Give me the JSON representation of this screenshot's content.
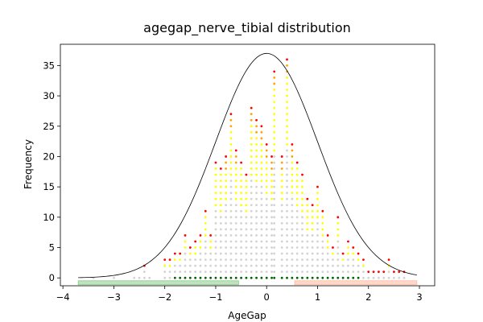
{
  "chart_data": {
    "type": "scatter",
    "title": "agegap_nerve_tibial distribution",
    "xlabel": "AgeGap",
    "ylabel": "Frequency",
    "xlim": [
      -4.05,
      3.3
    ],
    "ylim": [
      -1.3,
      38.5
    ],
    "xticks": [
      -4,
      -3,
      -2,
      -1,
      0,
      1,
      2,
      3
    ],
    "yticks": [
      0,
      5,
      10,
      15,
      20,
      25,
      30,
      35
    ],
    "grid": false,
    "legend": "none",
    "bin_width": 0.1,
    "curve": {
      "name": "normal fit",
      "mean": 0.0,
      "sd": 1.0,
      "peak": 37,
      "x_range": [
        -3.7,
        2.95
      ],
      "color": "#000000"
    },
    "bands": [
      {
        "x": [
          -3.7,
          -0.55
        ],
        "y": -0.8,
        "color": "#2ca02c"
      },
      {
        "x": [
          0.55,
          2.95
        ],
        "y": -0.8,
        "color": "#ff7f50"
      }
    ],
    "colors": {
      "base": "#d3d3d3",
      "mid": "#ffff00",
      "high": "#ffa500",
      "top": "#ff0000",
      "zero": "#006400"
    },
    "stacks": [
      {
        "x": -3.4,
        "count": 0
      },
      {
        "x": -3.0,
        "count": 0
      },
      {
        "x": -2.6,
        "count": 0
      },
      {
        "x": -2.5,
        "count": 0
      },
      {
        "x": -2.4,
        "count": 2
      },
      {
        "x": -2.3,
        "count": 0
      },
      {
        "x": -2.0,
        "count": 3
      },
      {
        "x": -1.9,
        "count": 3
      },
      {
        "x": -1.8,
        "count": 4
      },
      {
        "x": -1.7,
        "count": 4
      },
      {
        "x": -1.6,
        "count": 7
      },
      {
        "x": -1.5,
        "count": 5
      },
      {
        "x": -1.4,
        "count": 6
      },
      {
        "x": -1.3,
        "count": 7
      },
      {
        "x": -1.2,
        "count": 11
      },
      {
        "x": -1.1,
        "count": 7
      },
      {
        "x": -1.0,
        "count": 19
      },
      {
        "x": -0.9,
        "count": 18
      },
      {
        "x": -0.8,
        "count": 20
      },
      {
        "x": -0.7,
        "count": 27
      },
      {
        "x": -0.6,
        "count": 21
      },
      {
        "x": -0.5,
        "count": 19
      },
      {
        "x": -0.4,
        "count": 17
      },
      {
        "x": -0.3,
        "count": 28
      },
      {
        "x": -0.2,
        "count": 26
      },
      {
        "x": -0.1,
        "count": 25
      },
      {
        "x": 0.0,
        "count": 22
      },
      {
        "x": 0.1,
        "count": 20
      },
      {
        "x": 0.15,
        "count": 34
      },
      {
        "x": 0.3,
        "count": 20
      },
      {
        "x": 0.4,
        "count": 36
      },
      {
        "x": 0.5,
        "count": 22
      },
      {
        "x": 0.6,
        "count": 19
      },
      {
        "x": 0.7,
        "count": 17
      },
      {
        "x": 0.8,
        "count": 13
      },
      {
        "x": 0.9,
        "count": 12
      },
      {
        "x": 1.0,
        "count": 15
      },
      {
        "x": 1.1,
        "count": 11
      },
      {
        "x": 1.2,
        "count": 7
      },
      {
        "x": 1.3,
        "count": 5
      },
      {
        "x": 1.4,
        "count": 10
      },
      {
        "x": 1.5,
        "count": 4
      },
      {
        "x": 1.6,
        "count": 6
      },
      {
        "x": 1.7,
        "count": 5
      },
      {
        "x": 1.8,
        "count": 4
      },
      {
        "x": 1.9,
        "count": 3
      },
      {
        "x": 2.0,
        "count": 1
      },
      {
        "x": 2.1,
        "count": 1
      },
      {
        "x": 2.2,
        "count": 1
      },
      {
        "x": 2.3,
        "count": 1
      },
      {
        "x": 2.4,
        "count": 3
      },
      {
        "x": 2.5,
        "count": 1
      },
      {
        "x": 2.6,
        "count": 1
      },
      {
        "x": 2.7,
        "count": 1
      }
    ]
  }
}
